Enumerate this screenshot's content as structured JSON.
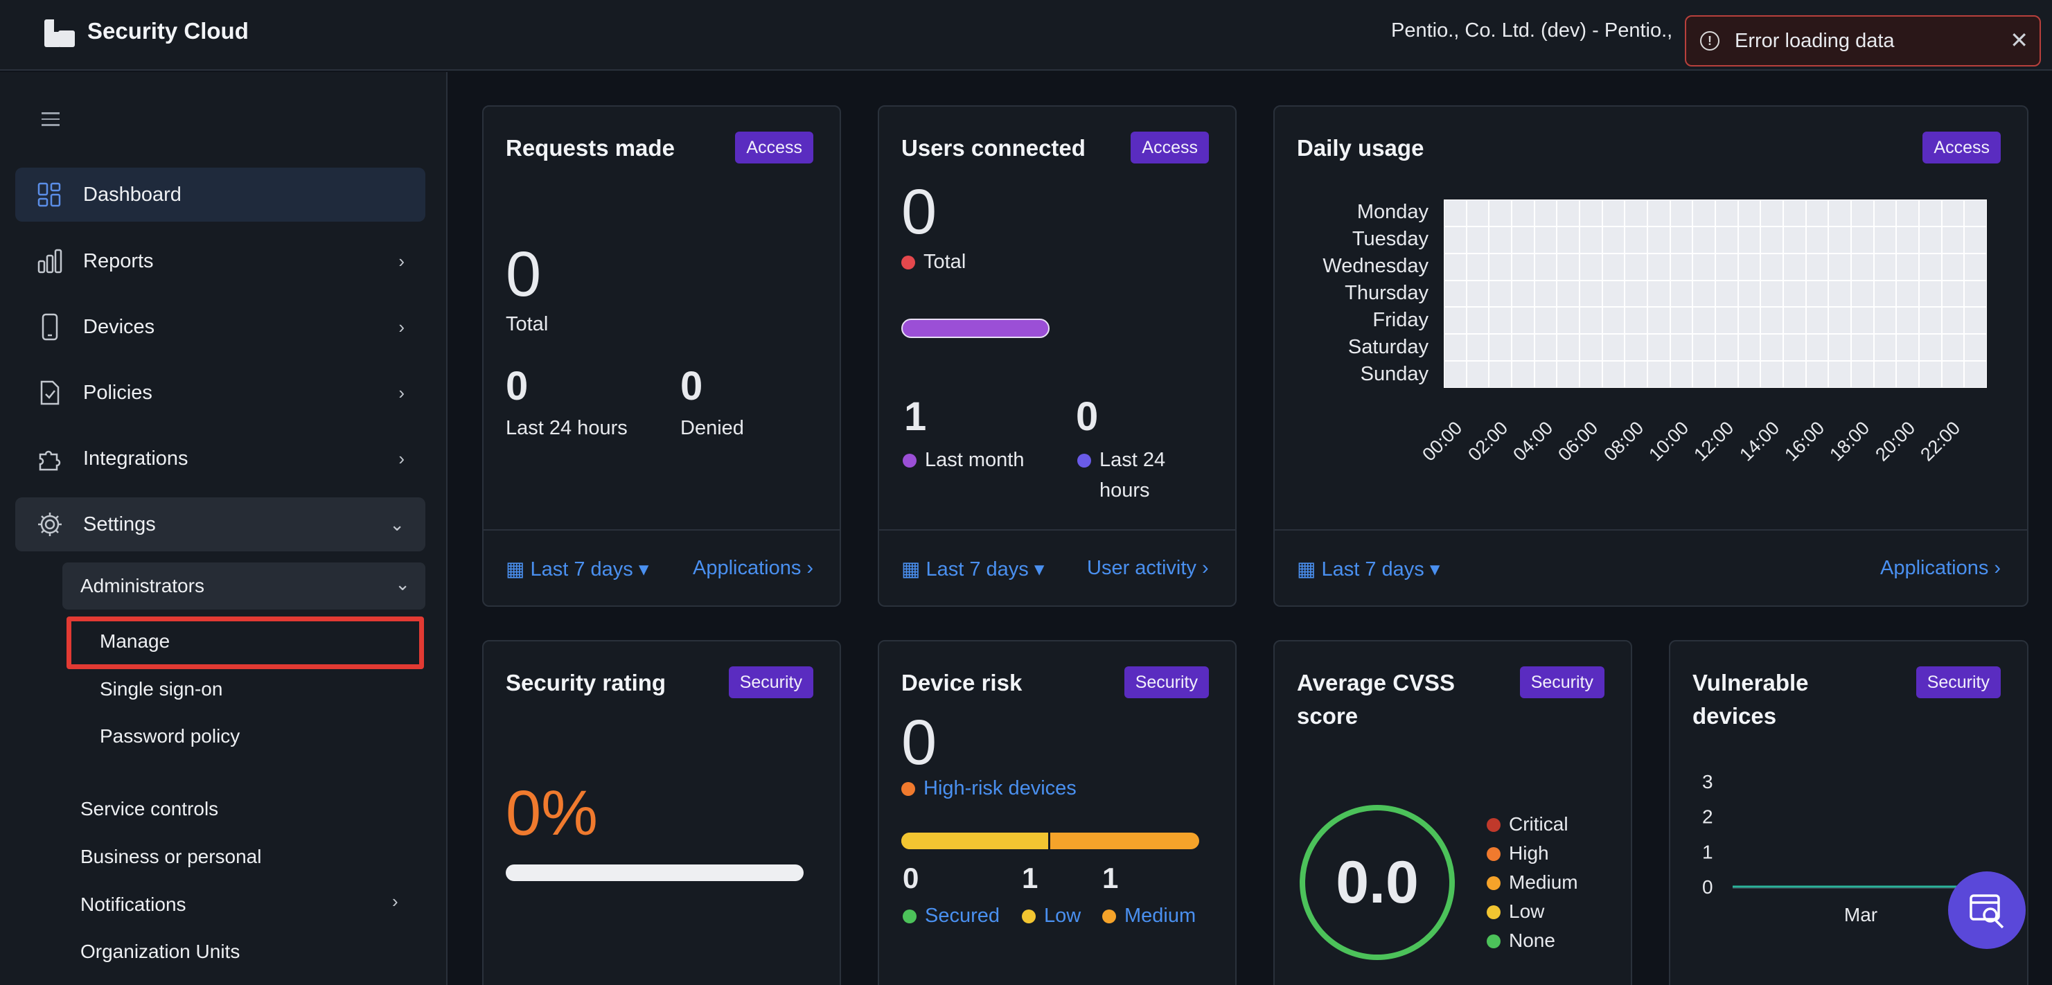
{
  "app": {
    "title": "Security Cloud",
    "org": "Pentio., Co. Ltd. (dev) - Pentio., "
  },
  "toast": {
    "message": "Error loading data",
    "close": "✕"
  },
  "sidebar": {
    "items": [
      {
        "label": "Dashboard"
      },
      {
        "label": "Reports"
      },
      {
        "label": "Devices"
      },
      {
        "label": "Policies"
      },
      {
        "label": "Integrations"
      },
      {
        "label": "Settings"
      }
    ],
    "admin": {
      "label": "Administrators"
    },
    "admin_sub": [
      "Manage",
      "Single sign-on",
      "Password policy"
    ],
    "settings_sub": [
      "Service controls",
      "Business or personal",
      "Notifications",
      "Organization Units"
    ]
  },
  "cards": {
    "requests": {
      "title": "Requests made",
      "badge": "Access",
      "total": "0",
      "total_label": "Total",
      "last24": "0",
      "last24_label": "Last 24 hours",
      "denied": "0",
      "denied_label": "Denied",
      "period": "Last 7 days",
      "link": "Applications"
    },
    "users": {
      "title": "Users connected",
      "badge": "Access",
      "total": "0",
      "total_label": "Total",
      "last_month": "1",
      "last_month_label": "Last month",
      "last24": "0",
      "last24_label_1": "Last 24",
      "last24_label_2": "hours",
      "period": "Last 7 days",
      "link": "User activity"
    },
    "daily": {
      "title": "Daily usage",
      "badge": "Access",
      "days": [
        "Monday",
        "Tuesday",
        "Wednesday",
        "Thursday",
        "Friday",
        "Saturday",
        "Sunday"
      ],
      "hours": [
        "00:00",
        "02:00",
        "04:00",
        "06:00",
        "08:00",
        "10:00",
        "12:00",
        "14:00",
        "16:00",
        "18:00",
        "20:00",
        "22:00"
      ],
      "period": "Last 7 days",
      "link": "Applications"
    },
    "rating": {
      "title": "Security rating",
      "badge": "Security",
      "value": "0%",
      "progress": 0
    },
    "risk": {
      "title": "Device risk",
      "badge": "Security",
      "value": "0",
      "value_label": "High-risk devices",
      "secured": "0",
      "secured_label": "Secured",
      "low": "1",
      "low_label": "Low",
      "medium": "1",
      "medium_label": "Medium",
      "bar_split": 0.5
    },
    "cvss": {
      "title_1": "Average CVSS",
      "title_2": "score",
      "badge": "Security",
      "value": "0.0",
      "legend": [
        "Critical",
        "High",
        "Medium",
        "Low",
        "None"
      ]
    },
    "vuln": {
      "title_1": "Vulnerable",
      "title_2": "devices",
      "badge": "Security",
      "yticks": [
        "3",
        "2",
        "1",
        "0"
      ],
      "xlabel": "Mar"
    }
  },
  "colors": {
    "accent": "#4a90f0",
    "badge": "#5a2cc0",
    "error": "#e23a33",
    "red": "#e5484d",
    "purple": "#9b4fd6",
    "orange": "#f07a2e",
    "amber": "#f5a32a",
    "yellow": "#f2c531",
    "green": "#4cc25a"
  },
  "chart_data": {
    "type": "line",
    "title": "Vulnerable devices",
    "categories": [
      "Mar"
    ],
    "series": [
      {
        "values": [
          0
        ]
      }
    ],
    "ylim": [
      0,
      3
    ]
  }
}
